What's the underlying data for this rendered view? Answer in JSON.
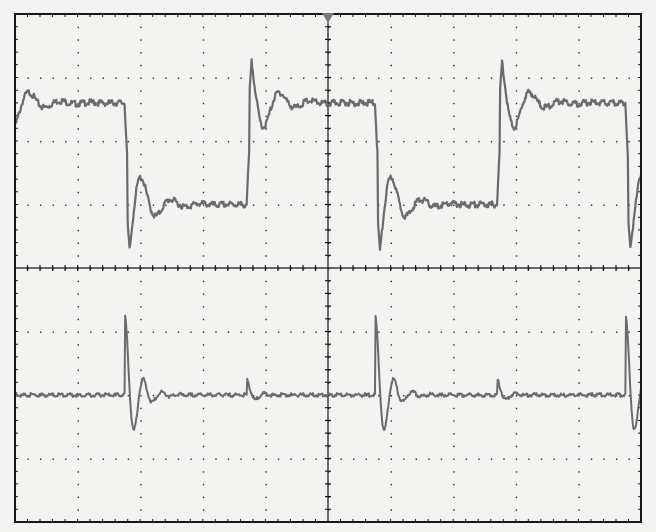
{
  "screen": {
    "background_color": "#f3f3f1",
    "frame_color": "#161616",
    "grid_dot_color": "#2a2a2a",
    "trace_color": "#6b6b6b",
    "trigger_marker_color": "#7a7a7a"
  },
  "graticule": {
    "horizontal_divisions": 10,
    "vertical_divisions": 8,
    "minor_ticks_per_division": 5
  },
  "trace_top": {
    "shape": "square-wave-with-ringing",
    "period_divisions": 4,
    "high_level_divisions": 2.6,
    "low_level_divisions": 1.0,
    "overshoot_divisions": 0.6,
    "ringing_cycles": 3
  },
  "trace_bottom": {
    "shape": "damped-pulse-train",
    "period_divisions": 4,
    "baseline_divisions": -2.0,
    "peak_amplitude_divisions": 1.3,
    "secondary_amplitude_divisions": 0.25
  }
}
